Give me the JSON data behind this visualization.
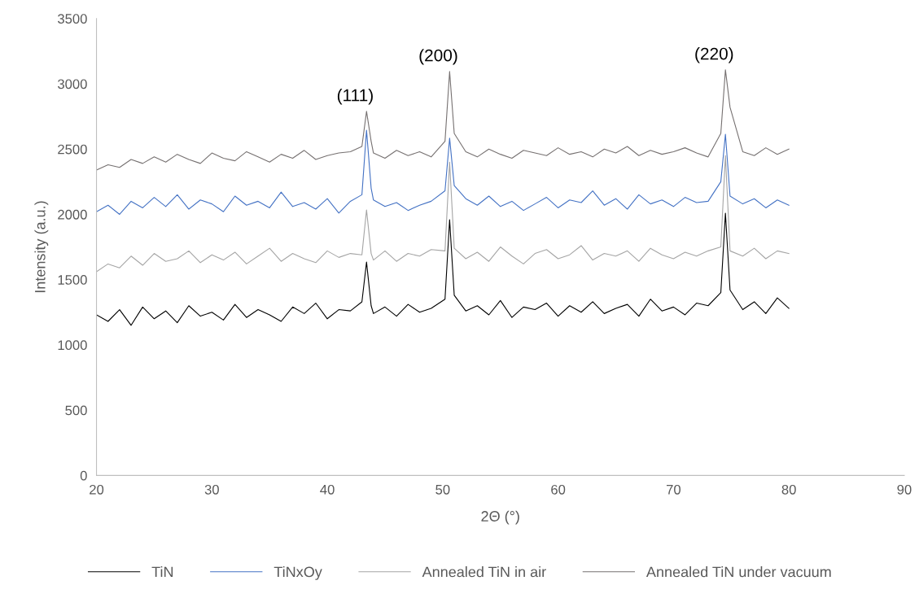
{
  "chart_data": {
    "type": "line",
    "xlabel": "2Θ (°)",
    "ylabel": "Intensity (a.u.)",
    "xlim": [
      20,
      90
    ],
    "xticks": [
      20,
      30,
      40,
      50,
      60,
      70,
      80,
      90
    ],
    "ylim": [
      0,
      3500
    ],
    "yticks": [
      0,
      500,
      1000,
      1500,
      2000,
      2500,
      3000,
      3500
    ],
    "grid": false,
    "legend": "bottom",
    "marker": "none",
    "line_style": "solid",
    "x": [
      20,
      21,
      22,
      23,
      24,
      25,
      26,
      27,
      28,
      29,
      30,
      31,
      32,
      33,
      34,
      35,
      36,
      37,
      38,
      39,
      40,
      41,
      42,
      43,
      43.4,
      43.8,
      44,
      45,
      46,
      47,
      48,
      49,
      50.2,
      50.6,
      51,
      52,
      53,
      54,
      55,
      56,
      57,
      58,
      59,
      60,
      61,
      62,
      63,
      64,
      65,
      66,
      67,
      68,
      69,
      70,
      71,
      72,
      73,
      74.1,
      74.5,
      74.9,
      76,
      77,
      78,
      79,
      80
    ],
    "series": [
      {
        "name": "TiN",
        "color": "#000000",
        "values": [
          1230,
          1180,
          1270,
          1150,
          1290,
          1200,
          1260,
          1170,
          1300,
          1220,
          1250,
          1190,
          1310,
          1210,
          1270,
          1230,
          1180,
          1290,
          1240,
          1320,
          1200,
          1270,
          1260,
          1330,
          1634,
          1300,
          1240,
          1290,
          1220,
          1310,
          1250,
          1280,
          1350,
          1959,
          1380,
          1260,
          1300,
          1230,
          1340,
          1210,
          1290,
          1270,
          1320,
          1220,
          1300,
          1250,
          1330,
          1240,
          1280,
          1310,
          1220,
          1350,
          1260,
          1290,
          1230,
          1320,
          1300,
          1400,
          2009,
          1420,
          1270,
          1330,
          1240,
          1360,
          1280
        ]
      },
      {
        "name": "TiNxOy",
        "color": "#4472c4",
        "values": [
          2020,
          2070,
          2000,
          2100,
          2050,
          2130,
          2060,
          2150,
          2040,
          2110,
          2080,
          2020,
          2140,
          2070,
          2100,
          2050,
          2170,
          2060,
          2090,
          2040,
          2120,
          2010,
          2100,
          2150,
          2645,
          2200,
          2110,
          2060,
          2090,
          2030,
          2070,
          2100,
          2180,
          2583,
          2220,
          2120,
          2070,
          2140,
          2060,
          2100,
          2030,
          2080,
          2130,
          2050,
          2110,
          2090,
          2180,
          2070,
          2120,
          2040,
          2150,
          2080,
          2110,
          2060,
          2130,
          2090,
          2100,
          2250,
          2614,
          2140,
          2080,
          2120,
          2050,
          2110,
          2070
        ]
      },
      {
        "name": "Annealed TiN in air",
        "color": "#a5a5a5",
        "values": [
          1560,
          1620,
          1590,
          1680,
          1610,
          1700,
          1640,
          1660,
          1720,
          1630,
          1690,
          1650,
          1710,
          1620,
          1680,
          1740,
          1640,
          1700,
          1660,
          1630,
          1720,
          1670,
          1700,
          1690,
          2034,
          1700,
          1650,
          1720,
          1640,
          1700,
          1680,
          1730,
          1720,
          2400,
          1740,
          1660,
          1710,
          1640,
          1750,
          1680,
          1620,
          1700,
          1730,
          1660,
          1690,
          1760,
          1650,
          1700,
          1680,
          1720,
          1640,
          1740,
          1690,
          1660,
          1710,
          1680,
          1720,
          1750,
          2450,
          1720,
          1680,
          1740,
          1660,
          1720,
          1700
        ]
      },
      {
        "name": "Annealed TiN under vacuum",
        "color": "#767171",
        "values": [
          2340,
          2380,
          2360,
          2420,
          2390,
          2440,
          2400,
          2460,
          2420,
          2390,
          2470,
          2430,
          2410,
          2480,
          2440,
          2400,
          2460,
          2430,
          2490,
          2420,
          2450,
          2470,
          2480,
          2520,
          2789,
          2560,
          2470,
          2430,
          2490,
          2450,
          2480,
          2440,
          2560,
          3094,
          2620,
          2480,
          2440,
          2500,
          2460,
          2430,
          2490,
          2470,
          2450,
          2510,
          2460,
          2480,
          2440,
          2500,
          2470,
          2520,
          2450,
          2490,
          2460,
          2480,
          2510,
          2470,
          2440,
          2620,
          3107,
          2820,
          2480,
          2450,
          2510,
          2460,
          2500
        ]
      }
    ],
    "annotations": [
      {
        "text": "(111)",
        "x": 43.4,
        "y": 2789
      },
      {
        "text": "(200)",
        "x": 50.6,
        "y": 3094
      },
      {
        "text": "(220)",
        "x": 74.5,
        "y": 3107
      }
    ]
  }
}
